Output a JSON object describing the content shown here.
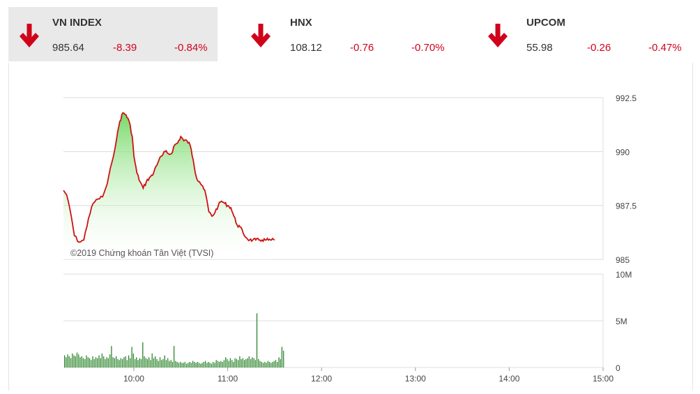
{
  "indices": [
    {
      "name": "VN INDEX",
      "value": "985.64",
      "change": "-8.39",
      "percent": "-0.84%",
      "active": true
    },
    {
      "name": "HNX",
      "value": "108.12",
      "change": "-0.76",
      "percent": "-0.70%",
      "active": false
    },
    {
      "name": "UPCOM",
      "value": "55.98",
      "change": "-0.26",
      "percent": "-0.47%",
      "active": false
    }
  ],
  "colors": {
    "down": "#d0021b",
    "line": "#cc1111",
    "fill": "#7ddc6e",
    "volume": "#1e7d1e",
    "grid": "#dcdcdc"
  },
  "chart_data": [
    {
      "type": "area",
      "title": "",
      "ylim": [
        985,
        992.5
      ],
      "y_ticks": [
        "992.5",
        "990",
        "987.5",
        "985"
      ],
      "watermark": "©2019 Chứng khoán Tân Việt (TVSI)",
      "x_range": [
        "09:15",
        "15:00"
      ],
      "series": [
        {
          "x": [
            "09:15",
            "09:17",
            "09:20",
            "09:22",
            "09:25",
            "09:28",
            "09:31",
            "09:34",
            "09:37",
            "09:40",
            "09:43",
            "09:46",
            "09:49",
            "09:51",
            "09:53",
            "09:55",
            "09:57",
            "09:59",
            "10:00",
            "10:02",
            "10:04",
            "10:06",
            "10:08",
            "10:10",
            "10:12",
            "10:14",
            "10:16",
            "10:18",
            "10:20",
            "10:22",
            "10:24",
            "10:26",
            "10:28",
            "10:30",
            "10:32",
            "10:34",
            "10:36",
            "10:38",
            "10:40",
            "10:42",
            "10:44",
            "10:46",
            "10:48",
            "10:50",
            "10:52",
            "10:54",
            "10:56",
            "10:58",
            "11:00",
            "11:02",
            "11:04",
            "11:06",
            "11:08",
            "11:10",
            "11:12",
            "11:14",
            "11:16",
            "11:18",
            "11:20",
            "11:22",
            "11:24",
            "11:26",
            "11:28",
            "11:30"
          ],
          "values": [
            988.2,
            988.0,
            987.0,
            986.1,
            985.8,
            985.9,
            986.9,
            987.6,
            987.8,
            987.9,
            988.5,
            989.5,
            990.6,
            991.4,
            991.8,
            991.7,
            991.4,
            990.7,
            989.8,
            989.0,
            988.6,
            988.3,
            988.6,
            988.8,
            988.9,
            989.3,
            989.6,
            989.8,
            990.0,
            989.9,
            989.9,
            990.3,
            990.4,
            990.7,
            990.5,
            990.5,
            990.3,
            989.6,
            988.8,
            988.6,
            988.4,
            988.0,
            987.2,
            987.0,
            987.2,
            987.5,
            987.7,
            987.6,
            987.5,
            987.4,
            987.0,
            986.6,
            986.5,
            986.2,
            986.0,
            985.9,
            985.9,
            985.9,
            985.9,
            985.9,
            985.9,
            985.9,
            985.9,
            985.9
          ]
        }
      ]
    },
    {
      "type": "bar",
      "title": "",
      "ylim": [
        0,
        10
      ],
      "y_ticks": [
        "10M",
        "5M",
        "0"
      ],
      "x_ticks": [
        "10:00",
        "11:00",
        "12:00",
        "13:00",
        "14:00",
        "15:00"
      ],
      "series": [
        {
          "name": "",
          "unit": "M",
          "x_start": "09:15",
          "interval_minutes": 1,
          "values": [
            1.3,
            1.1,
            1.4,
            1.2,
            1.0,
            1.5,
            1.3,
            1.2,
            1.6,
            1.4,
            1.1,
            1.2,
            1.0,
            0.9,
            1.3,
            1.1,
            1.0,
            0.8,
            1.2,
            0.9,
            1.1,
            1.0,
            1.3,
            1.0,
            1.5,
            1.2,
            0.9,
            1.1,
            1.0,
            1.4,
            2.3,
            1.1,
            1.0,
            1.2,
            0.9,
            0.8,
            1.0,
            0.9,
            1.1,
            1.2,
            0.8,
            1.3,
            1.0,
            2.2,
            1.5,
            0.9,
            1.1,
            0.8,
            1.0,
            0.9,
            2.7,
            1.2,
            1.0,
            0.9,
            1.1,
            0.8,
            1.5,
            1.0,
            1.2,
            0.9,
            0.7,
            1.1,
            0.8,
            0.9,
            1.3,
            0.8,
            1.0,
            0.7,
            0.8,
            0.6,
            2.3,
            0.7,
            0.6,
            0.5,
            0.6,
            0.5,
            0.5,
            0.6,
            0.4,
            0.5,
            0.6,
            0.5,
            0.7,
            0.6,
            0.5,
            0.6,
            0.5,
            0.4,
            0.5,
            0.6,
            0.7,
            0.5,
            0.6,
            0.5,
            0.4,
            0.6,
            0.5,
            0.8,
            0.7,
            0.6,
            0.7,
            0.6,
            0.8,
            1.1,
            0.9,
            0.7,
            1.0,
            0.8,
            0.6,
            1.0,
            0.9,
            0.8,
            1.2,
            0.9,
            1.0,
            0.8,
            0.9,
            1.0,
            1.2,
            0.9,
            1.1,
            1.0,
            0.8,
            5.8,
            0.9,
            0.7,
            0.6,
            0.5,
            0.6,
            0.5,
            0.7,
            0.6,
            0.5,
            0.6,
            0.7,
            0.8,
            0.6,
            1.1,
            0.9,
            2.2,
            1.8
          ]
        }
      ]
    }
  ]
}
